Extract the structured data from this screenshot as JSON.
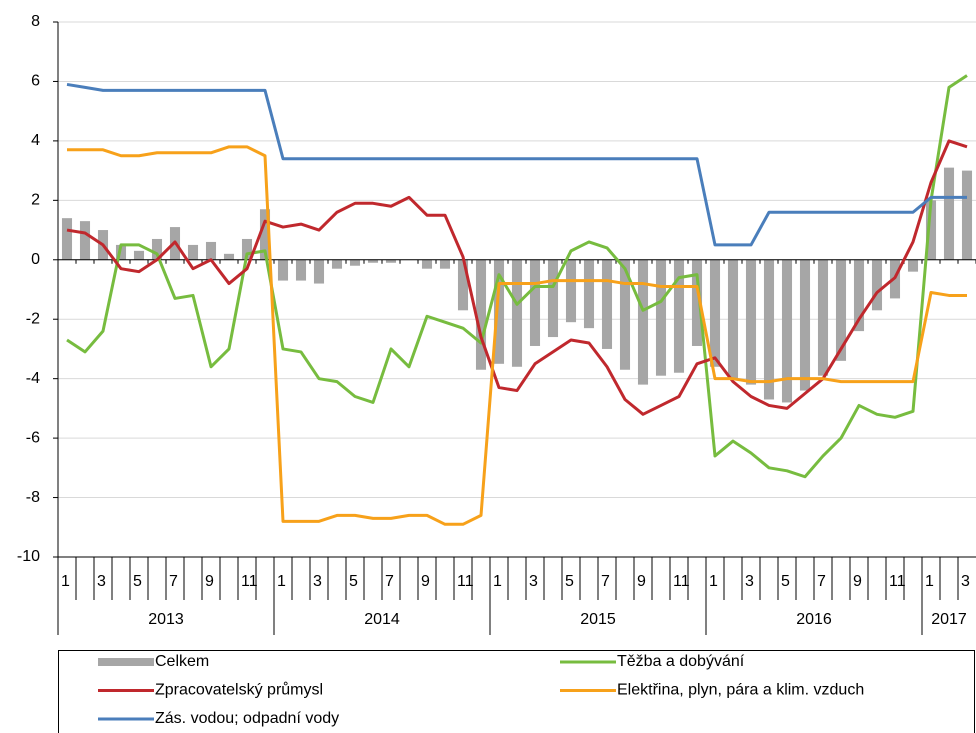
{
  "chart_data": {
    "type": "combo",
    "categories": [
      "1",
      null,
      "3",
      null,
      "5",
      null,
      "7",
      null,
      "9",
      null,
      "11",
      null,
      "1",
      null,
      "3",
      null,
      "5",
      null,
      "7",
      null,
      "9",
      null,
      "11",
      null,
      "1",
      null,
      "3",
      null,
      "5",
      null,
      "7",
      null,
      "9",
      null,
      "11",
      null,
      "1",
      null,
      "3",
      null,
      "5",
      null,
      "7",
      null,
      "9",
      null,
      "11",
      null,
      "1",
      null,
      "3"
    ],
    "category_groups": [
      "2013",
      "2013",
      "2013",
      "2013",
      "2013",
      "2013",
      "2013",
      "2013",
      "2013",
      "2013",
      "2013",
      "2013",
      "2014",
      "2014",
      "2014",
      "2014",
      "2014",
      "2014",
      "2014",
      "2014",
      "2014",
      "2014",
      "2014",
      "2014",
      "2015",
      "2015",
      "2015",
      "2015",
      "2015",
      "2015",
      "2015",
      "2015",
      "2015",
      "2015",
      "2015",
      "2015",
      "2016",
      "2016",
      "2016",
      "2016",
      "2016",
      "2016",
      "2016",
      "2016",
      "2016",
      "2016",
      "2016",
      "2016",
      "2017",
      "2017",
      "2017"
    ],
    "ylim": [
      -10,
      8
    ],
    "yticks": [
      -10,
      -8,
      -6,
      -4,
      -2,
      0,
      2,
      4,
      6,
      8
    ],
    "grid": true,
    "legend": "bottom",
    "series": [
      {
        "name": "Celkem",
        "type": "bar",
        "color": "#a6a6a6",
        "values": [
          1.4,
          1.3,
          1.0,
          0.5,
          0.3,
          0.7,
          1.1,
          0.5,
          0.6,
          0.2,
          0.7,
          1.7,
          -0.7,
          -0.7,
          -0.8,
          -0.3,
          -0.2,
          -0.1,
          -0.1,
          0,
          -0.3,
          -0.3,
          -1.7,
          -3.7,
          -3.5,
          -3.6,
          -2.9,
          -2.6,
          -2.1,
          -2.3,
          -3.0,
          -3.7,
          -4.2,
          -3.9,
          -3.8,
          -2.9,
          -3.6,
          -4.0,
          -4.2,
          -4.7,
          -4.8,
          -4.4,
          -3.9,
          -3.4,
          -2.4,
          -1.7,
          -1.3,
          -0.4,
          2.0,
          3.1,
          3.0
        ]
      },
      {
        "name": "Těžba a dobývání",
        "type": "line",
        "color": "#77bc3f",
        "values": [
          -2.7,
          -3.1,
          -2.4,
          0.5,
          0.5,
          0.2,
          -1.3,
          -1.2,
          -3.6,
          -3.0,
          0.2,
          0.3,
          -3.0,
          -3.1,
          -4.0,
          -4.1,
          -4.6,
          -4.8,
          -3.0,
          -3.6,
          -1.9,
          -2.1,
          -2.3,
          -2.8,
          -0.5,
          -1.5,
          -0.9,
          -0.9,
          0.3,
          0.6,
          0.4,
          -0.3,
          -1.7,
          -1.4,
          -0.6,
          -0.5,
          -6.6,
          -6.1,
          -6.5,
          -7.0,
          -7.1,
          -7.3,
          -6.6,
          -6.0,
          -4.9,
          -5.2,
          -5.3,
          -5.1,
          2.0,
          5.8,
          6.2
        ]
      },
      {
        "name": "Zpracovatelský průmysl",
        "type": "line",
        "color": "#c0282d",
        "values": [
          1.0,
          0.9,
          0.5,
          -0.3,
          -0.4,
          0,
          0.6,
          -0.3,
          0,
          -0.8,
          -0.3,
          1.3,
          1.1,
          1.2,
          1.0,
          1.6,
          1.9,
          1.9,
          1.8,
          2.1,
          1.5,
          1.5,
          0.1,
          -2.6,
          -4.3,
          -4.4,
          -3.5,
          -3.1,
          -2.7,
          -2.8,
          -3.6,
          -4.7,
          -5.2,
          -4.9,
          -4.6,
          -3.5,
          -3.3,
          -4.1,
          -4.6,
          -4.9,
          -5.0,
          -4.5,
          -4.0,
          -3.0,
          -2.0,
          -1.1,
          -0.6,
          0.6,
          2.6,
          4.0,
          3.8
        ]
      },
      {
        "name": "Elektřina, plyn, pára a klim. vzduch",
        "type": "line",
        "color": "#f7a11a",
        "values": [
          3.7,
          3.7,
          3.7,
          3.5,
          3.5,
          3.6,
          3.6,
          3.6,
          3.6,
          3.8,
          3.8,
          3.5,
          -8.8,
          -8.8,
          -8.8,
          -8.6,
          -8.6,
          -8.7,
          -8.7,
          -8.6,
          -8.6,
          -8.9,
          -8.9,
          -8.6,
          -0.8,
          -0.8,
          -0.8,
          -0.7,
          -0.7,
          -0.7,
          -0.7,
          -0.8,
          -0.8,
          -0.9,
          -0.9,
          -0.9,
          -4.0,
          -4.0,
          -4.1,
          -4.1,
          -4.0,
          -4.0,
          -4.0,
          -4.1,
          -4.1,
          -4.1,
          -4.1,
          -4.1,
          -1.1,
          -1.2,
          -1.2
        ]
      },
      {
        "name": "Zás. vodou; odpadní vody",
        "type": "line",
        "color": "#4a7ebb",
        "values": [
          5.9,
          5.8,
          5.7,
          5.7,
          5.7,
          5.7,
          5.7,
          5.7,
          5.7,
          5.7,
          5.7,
          5.7,
          3.4,
          3.4,
          3.4,
          3.4,
          3.4,
          3.4,
          3.4,
          3.4,
          3.4,
          3.4,
          3.4,
          3.4,
          3.4,
          3.4,
          3.4,
          3.4,
          3.4,
          3.4,
          3.4,
          3.4,
          3.4,
          3.4,
          3.4,
          3.4,
          0.5,
          0.5,
          0.5,
          1.6,
          1.6,
          1.6,
          1.6,
          1.6,
          1.6,
          1.6,
          1.6,
          1.6,
          2.1,
          2.1,
          2.1
        ]
      }
    ]
  }
}
